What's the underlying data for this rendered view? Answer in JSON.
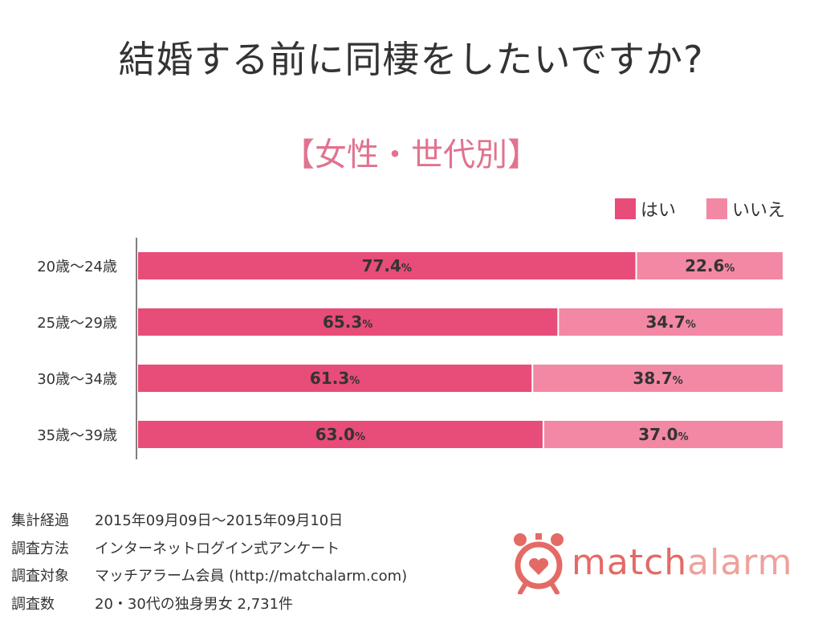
{
  "title": "結婚する前に同棲をしたいですか?",
  "subtitle": "【女性・世代別】",
  "legend": [
    {
      "label": "はい",
      "color": "#e84c78"
    },
    {
      "label": "いいえ",
      "color": "#f288a4"
    }
  ],
  "chart_data": {
    "type": "bar",
    "orientation": "horizontal",
    "stacked": true,
    "categories": [
      "20歳〜24歳",
      "25歳〜29歳",
      "30歳〜34歳",
      "35歳〜39歳"
    ],
    "series": [
      {
        "name": "はい",
        "values": [
          77.4,
          65.3,
          61.3,
          63.0
        ],
        "labels": [
          "77.4",
          "65.3",
          "61.3",
          "63.0"
        ],
        "color": "#e84c78"
      },
      {
        "name": "いいえ",
        "values": [
          22.6,
          34.7,
          38.7,
          37.0
        ],
        "labels": [
          "22.6",
          "34.7",
          "38.7",
          "37.0"
        ],
        "color": "#f288a4"
      }
    ],
    "unit": "%",
    "xlim": [
      0,
      100
    ],
    "grid": false,
    "legend_position": "top-right"
  },
  "survey": [
    {
      "key": "集計経過",
      "value": "2015年09月09日〜2015年09月10日"
    },
    {
      "key": "調査方法",
      "value": "インターネットログイン式アンケート"
    },
    {
      "key": "調査対象",
      "value": "マッチアラーム会員 (http://matchalarm.com)"
    },
    {
      "key": "調査数",
      "value": "20・30代の独身男女 2,731件"
    }
  ],
  "logo": {
    "part1": "match",
    "part2": "alarm",
    "icon": "alarm-clock-heart-icon"
  }
}
